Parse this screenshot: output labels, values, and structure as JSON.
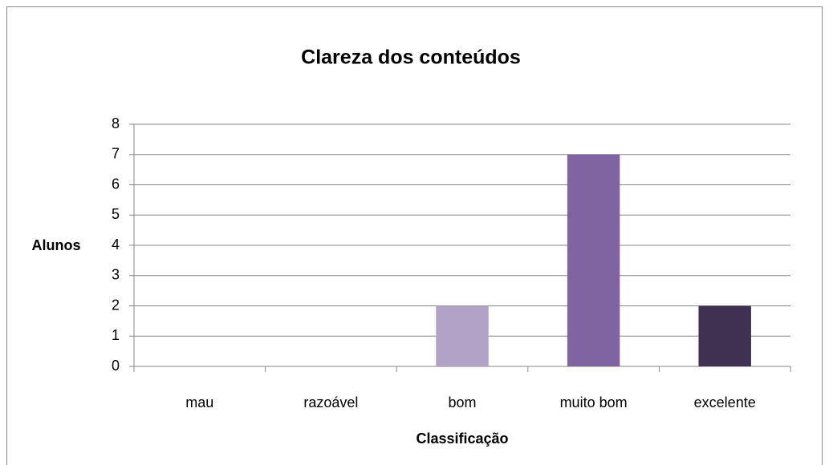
{
  "chart_data": {
    "type": "bar",
    "title": "Clareza dos conteúdos",
    "x_label": "Classificação",
    "y_label": "Alunos",
    "categories": [
      "mau",
      "razoável",
      "bom",
      "muito bom",
      "excelente"
    ],
    "values": [
      0,
      0,
      2,
      7,
      2
    ],
    "colors": [
      "#e6e0ec",
      "#ccc1da",
      "#b3a2c7",
      "#8064a2",
      "#403152"
    ],
    "ylim": [
      0,
      8
    ],
    "yticks": [
      0,
      1,
      2,
      3,
      4,
      5,
      6,
      7,
      8
    ],
    "grid": true
  }
}
